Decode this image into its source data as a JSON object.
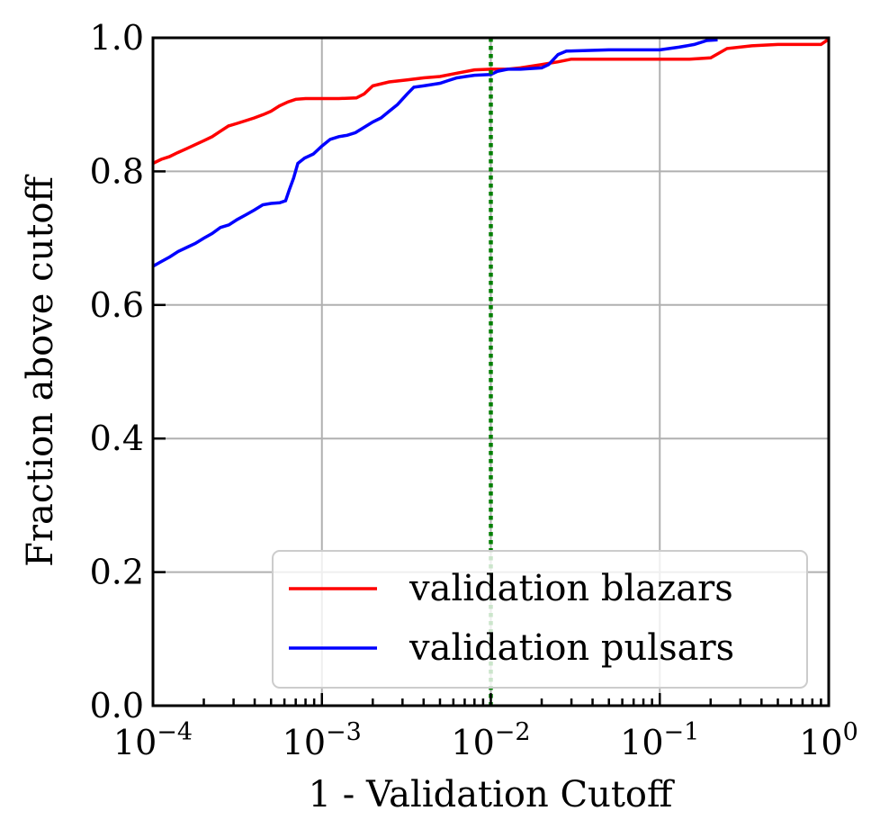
{
  "chart_data": {
    "type": "line",
    "title": "",
    "xlabel": "1 - Validation Cutoff",
    "ylabel": "Fraction above cutoff",
    "xscale": "log",
    "xlim": [
      0.0001,
      1
    ],
    "ylim": [
      0.0,
      1.0
    ],
    "grid": true,
    "legend_position": "lower-right",
    "x_ticks": [
      {
        "value": 0.0001,
        "base": "10",
        "exponent": "−4"
      },
      {
        "value": 0.001,
        "base": "10",
        "exponent": "−3"
      },
      {
        "value": 0.01,
        "base": "10",
        "exponent": "−2"
      },
      {
        "value": 0.1,
        "base": "10",
        "exponent": "−1"
      },
      {
        "value": 1,
        "base": "10",
        "exponent": "0"
      }
    ],
    "y_ticks": [
      {
        "value": 0.0,
        "label": "0.0"
      },
      {
        "value": 0.2,
        "label": "0.2"
      },
      {
        "value": 0.4,
        "label": "0.4"
      },
      {
        "value": 0.6,
        "label": "0.6"
      },
      {
        "value": 0.8,
        "label": "0.8"
      },
      {
        "value": 1.0,
        "label": "1.0"
      }
    ],
    "vline": {
      "x": 0.01,
      "color": "#007f00",
      "style": "dotted"
    },
    "series": [
      {
        "name": "validation blazars",
        "color": "#ff0000",
        "points": [
          [
            0.0001,
            0.812
          ],
          [
            0.000112,
            0.818
          ],
          [
            0.000125,
            0.822
          ],
          [
            0.00014,
            0.828
          ],
          [
            0.000158,
            0.834
          ],
          [
            0.000178,
            0.84
          ],
          [
            0.0002,
            0.846
          ],
          [
            0.000224,
            0.852
          ],
          [
            0.00025,
            0.86
          ],
          [
            0.00028,
            0.868
          ],
          [
            0.000316,
            0.872
          ],
          [
            0.000355,
            0.876
          ],
          [
            0.000398,
            0.88
          ],
          [
            0.00045,
            0.885
          ],
          [
            0.0005,
            0.89
          ],
          [
            0.00056,
            0.898
          ],
          [
            0.00063,
            0.904
          ],
          [
            0.0007,
            0.908
          ],
          [
            0.0008,
            0.909
          ],
          [
            0.001,
            0.909
          ],
          [
            0.00126,
            0.909
          ],
          [
            0.0016,
            0.91
          ],
          [
            0.00178,
            0.916
          ],
          [
            0.002,
            0.928
          ],
          [
            0.0025,
            0.934
          ],
          [
            0.0032,
            0.937
          ],
          [
            0.004,
            0.94
          ],
          [
            0.005,
            0.942
          ],
          [
            0.0063,
            0.947
          ],
          [
            0.008,
            0.952
          ],
          [
            0.01,
            0.953
          ],
          [
            0.0126,
            0.953
          ],
          [
            0.015,
            0.955
          ],
          [
            0.02,
            0.96
          ],
          [
            0.025,
            0.964
          ],
          [
            0.03,
            0.968
          ],
          [
            0.05,
            0.968
          ],
          [
            0.1,
            0.968
          ],
          [
            0.15,
            0.968
          ],
          [
            0.2,
            0.97
          ],
          [
            0.25,
            0.984
          ],
          [
            0.35,
            0.988
          ],
          [
            0.5,
            0.99
          ],
          [
            0.7,
            0.99
          ],
          [
            0.9,
            0.99
          ],
          [
            1.0,
            0.998
          ]
        ]
      },
      {
        "name": "validation pulsars",
        "color": "#0000ff",
        "points": [
          [
            0.0001,
            0.658
          ],
          [
            0.000112,
            0.665
          ],
          [
            0.000126,
            0.672
          ],
          [
            0.000141,
            0.68
          ],
          [
            0.000158,
            0.686
          ],
          [
            0.000178,
            0.692
          ],
          [
            0.0002,
            0.7
          ],
          [
            0.000224,
            0.707
          ],
          [
            0.000251,
            0.716
          ],
          [
            0.000282,
            0.72
          ],
          [
            0.000316,
            0.728
          ],
          [
            0.000355,
            0.735
          ],
          [
            0.000398,
            0.742
          ],
          [
            0.000447,
            0.75
          ],
          [
            0.0005,
            0.752
          ],
          [
            0.000562,
            0.753
          ],
          [
            0.00061,
            0.756
          ],
          [
            0.00064,
            0.772
          ],
          [
            0.00068,
            0.79
          ],
          [
            0.00072,
            0.812
          ],
          [
            0.00079,
            0.82
          ],
          [
            0.00089,
            0.826
          ],
          [
            0.001,
            0.838
          ],
          [
            0.00112,
            0.848
          ],
          [
            0.00126,
            0.852
          ],
          [
            0.00141,
            0.854
          ],
          [
            0.00158,
            0.858
          ],
          [
            0.00178,
            0.866
          ],
          [
            0.002,
            0.874
          ],
          [
            0.00224,
            0.88
          ],
          [
            0.0025,
            0.89
          ],
          [
            0.0028,
            0.9
          ],
          [
            0.0032,
            0.916
          ],
          [
            0.0035,
            0.926
          ],
          [
            0.004,
            0.928
          ],
          [
            0.0045,
            0.93
          ],
          [
            0.005,
            0.932
          ],
          [
            0.0056,
            0.936
          ],
          [
            0.0063,
            0.94
          ],
          [
            0.0071,
            0.942
          ],
          [
            0.008,
            0.944
          ],
          [
            0.01,
            0.945
          ],
          [
            0.011,
            0.95
          ],
          [
            0.0126,
            0.953
          ],
          [
            0.015,
            0.953
          ],
          [
            0.02,
            0.955
          ],
          [
            0.022,
            0.96
          ],
          [
            0.025,
            0.975
          ],
          [
            0.028,
            0.98
          ],
          [
            0.05,
            0.982
          ],
          [
            0.1,
            0.982
          ],
          [
            0.13,
            0.986
          ],
          [
            0.16,
            0.99
          ],
          [
            0.19,
            0.996
          ],
          [
            0.22,
            0.997
          ]
        ]
      }
    ]
  }
}
